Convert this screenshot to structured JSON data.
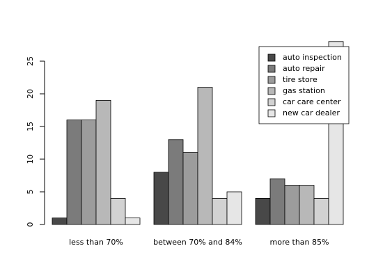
{
  "chart_data": {
    "type": "grouped_bar",
    "categories": [
      "less than 70%",
      "between 70% and 84%",
      "more than 85%"
    ],
    "series": [
      {
        "name": "auto inspection",
        "color": "#484848",
        "values": [
          1,
          8,
          4
        ]
      },
      {
        "name": "auto repair",
        "color": "#7b7b7b",
        "values": [
          16,
          13,
          7
        ]
      },
      {
        "name": "tire store",
        "color": "#9c9c9c",
        "values": [
          16,
          11,
          6
        ]
      },
      {
        "name": "gas station",
        "color": "#b8b8b8",
        "values": [
          19,
          21,
          6
        ]
      },
      {
        "name": "car care center",
        "color": "#d2d2d2",
        "values": [
          4,
          4,
          4
        ]
      },
      {
        "name": "new car dealer",
        "color": "#e6e6e6",
        "values": [
          1,
          5,
          28
        ]
      }
    ],
    "ylim": [
      0,
      28
    ],
    "yticks": [
      0,
      5,
      10,
      15,
      20,
      25
    ],
    "legend": "topright",
    "grid": false
  }
}
